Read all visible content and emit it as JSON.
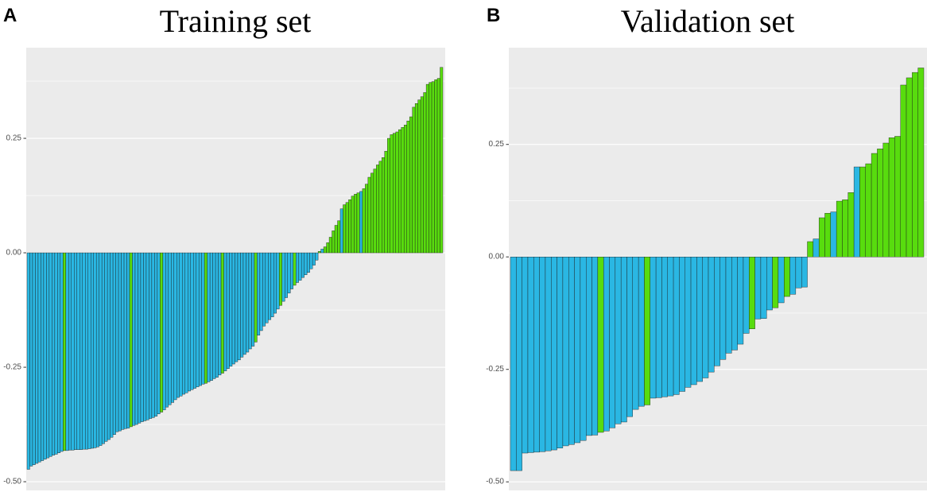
{
  "colors": {
    "panel_bg": "#EBEBEB",
    "grid": "#FFFFFF",
    "bar_outline": "#1A1A1A",
    "tick_mark": "#333333",
    "tick_label": "#4D4D4D"
  },
  "chart_data": [
    {
      "type": "bar",
      "panel_label": "A",
      "title": "Training set",
      "xlabel": "",
      "ylabel": "",
      "ylim": [
        -0.519,
        0.448
      ],
      "yticks": [
        0.25,
        0.0,
        -0.25,
        -0.5
      ],
      "ytick_labels": [
        "0.25",
        "0.00",
        "-0.25",
        "-0.50"
      ],
      "minor_yticks": [
        0.375,
        0.125,
        -0.125,
        -0.375
      ],
      "palette": [
        "#2AB7E3",
        "#58DC0E"
      ],
      "values": [
        -0.473,
        -0.466,
        -0.463,
        -0.46,
        -0.457,
        -0.454,
        -0.451,
        -0.448,
        -0.445,
        -0.442,
        -0.44,
        -0.437,
        -0.434,
        -0.432,
        -0.432,
        -0.431,
        -0.431,
        -0.43,
        -0.43,
        -0.43,
        -0.429,
        -0.429,
        -0.428,
        -0.427,
        -0.426,
        -0.424,
        -0.421,
        -0.417,
        -0.412,
        -0.408,
        -0.403,
        -0.397,
        -0.391,
        -0.389,
        -0.386,
        -0.384,
        -0.383,
        -0.38,
        -0.377,
        -0.375,
        -0.372,
        -0.369,
        -0.367,
        -0.365,
        -0.362,
        -0.36,
        -0.357,
        -0.352,
        -0.348,
        -0.343,
        -0.337,
        -0.332,
        -0.327,
        -0.321,
        -0.316,
        -0.313,
        -0.309,
        -0.306,
        -0.302,
        -0.299,
        -0.296,
        -0.293,
        -0.29,
        -0.287,
        -0.285,
        -0.282,
        -0.279,
        -0.275,
        -0.272,
        -0.267,
        -0.263,
        -0.258,
        -0.253,
        -0.248,
        -0.243,
        -0.238,
        -0.234,
        -0.228,
        -0.222,
        -0.217,
        -0.21,
        -0.204,
        -0.195,
        -0.18,
        -0.17,
        -0.16,
        -0.153,
        -0.146,
        -0.14,
        -0.132,
        -0.123,
        -0.115,
        -0.106,
        -0.098,
        -0.088,
        -0.079,
        -0.071,
        -0.065,
        -0.06,
        -0.054,
        -0.048,
        -0.043,
        -0.035,
        -0.027,
        -0.016,
        0.003,
        0.008,
        0.013,
        0.022,
        0.034,
        0.048,
        0.06,
        0.07,
        0.096,
        0.105,
        0.11,
        0.116,
        0.124,
        0.128,
        0.131,
        0.134,
        0.14,
        0.15,
        0.165,
        0.174,
        0.183,
        0.192,
        0.2,
        0.208,
        0.222,
        0.25,
        0.258,
        0.261,
        0.264,
        0.269,
        0.274,
        0.279,
        0.288,
        0.297,
        0.318,
        0.326,
        0.334,
        0.341,
        0.35,
        0.368,
        0.372,
        0.374,
        0.378,
        0.381,
        0.405
      ],
      "color_index": [
        0,
        0,
        0,
        0,
        0,
        0,
        0,
        0,
        0,
        0,
        0,
        0,
        0,
        1,
        0,
        0,
        0,
        0,
        0,
        0,
        0,
        0,
        0,
        0,
        0,
        0,
        0,
        0,
        0,
        0,
        0,
        0,
        0,
        0,
        0,
        0,
        0,
        1,
        0,
        0,
        0,
        0,
        0,
        0,
        0,
        0,
        0,
        0,
        1,
        0,
        0,
        0,
        0,
        0,
        0,
        0,
        0,
        0,
        0,
        0,
        0,
        0,
        0,
        0,
        1,
        0,
        0,
        0,
        0,
        0,
        1,
        0,
        0,
        0,
        0,
        0,
        0,
        0,
        0,
        0,
        0,
        0,
        1,
        0,
        0,
        0,
        0,
        0,
        0,
        0,
        0,
        1,
        0,
        0,
        0,
        0,
        1,
        0,
        0,
        0,
        0,
        0,
        0,
        0,
        0,
        1,
        0,
        1,
        1,
        1,
        1,
        1,
        1,
        0,
        1,
        1,
        1,
        1,
        1,
        1,
        0,
        1,
        1,
        1,
        1,
        1,
        1,
        1,
        1,
        1,
        1,
        1,
        1,
        1,
        1,
        1,
        1,
        1,
        1,
        1,
        1,
        1,
        1,
        1,
        1,
        1,
        1,
        1,
        1,
        1
      ]
    },
    {
      "type": "bar",
      "panel_label": "B",
      "title": "Validation set",
      "xlabel": "",
      "ylabel": "",
      "ylim": [
        -0.519,
        0.465
      ],
      "yticks": [
        0.25,
        0.0,
        -0.25,
        -0.5
      ],
      "ytick_labels": [
        "0.25",
        "0.00",
        "-0.25",
        "-0.50"
      ],
      "minor_yticks": [
        0.375,
        0.125,
        -0.125,
        -0.375
      ],
      "palette": [
        "#2AB7E3",
        "#58DC0E"
      ],
      "values": [
        -0.475,
        -0.475,
        -0.436,
        -0.435,
        -0.434,
        -0.433,
        -0.431,
        -0.429,
        -0.425,
        -0.42,
        -0.417,
        -0.413,
        -0.408,
        -0.397,
        -0.396,
        -0.39,
        -0.387,
        -0.38,
        -0.371,
        -0.367,
        -0.355,
        -0.339,
        -0.332,
        -0.329,
        -0.314,
        -0.313,
        -0.311,
        -0.309,
        -0.306,
        -0.299,
        -0.29,
        -0.284,
        -0.277,
        -0.269,
        -0.256,
        -0.242,
        -0.228,
        -0.214,
        -0.207,
        -0.194,
        -0.17,
        -0.16,
        -0.138,
        -0.137,
        -0.118,
        -0.113,
        -0.102,
        -0.088,
        -0.083,
        -0.069,
        -0.067,
        0.034,
        0.04,
        0.087,
        0.097,
        0.1,
        0.124,
        0.127,
        0.143,
        0.2,
        0.2,
        0.207,
        0.23,
        0.24,
        0.253,
        0.265,
        0.268,
        0.382,
        0.398,
        0.41,
        0.42
      ],
      "color_index": [
        0,
        0,
        0,
        0,
        0,
        0,
        0,
        0,
        0,
        0,
        0,
        0,
        0,
        0,
        0,
        1,
        0,
        0,
        0,
        0,
        0,
        0,
        0,
        1,
        0,
        0,
        0,
        0,
        0,
        0,
        0,
        0,
        0,
        0,
        0,
        0,
        0,
        0,
        0,
        0,
        0,
        1,
        0,
        0,
        0,
        1,
        0,
        1,
        0,
        0,
        0,
        1,
        0,
        1,
        1,
        0,
        1,
        1,
        1,
        0,
        1,
        1,
        1,
        1,
        1,
        1,
        1,
        1,
        1,
        1,
        1
      ]
    }
  ]
}
